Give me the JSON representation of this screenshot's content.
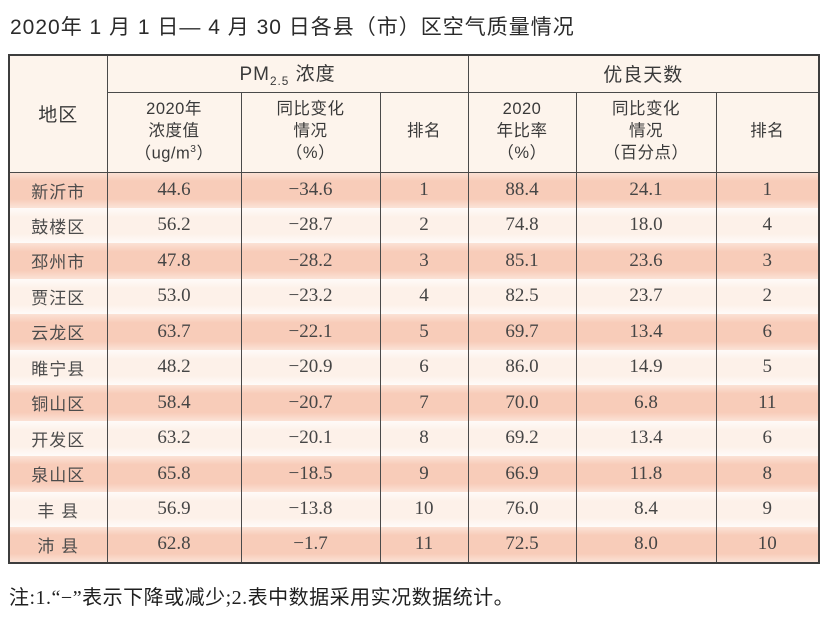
{
  "page": {
    "title": "2020年 1 月 1 日— 4 月 30 日各县（市）区空气质量情况",
    "footnote": "注:1.“−”表示下降或减少;2.表中数据采用实况数据统计。"
  },
  "colors": {
    "row_odd": "#f8ccb9",
    "row_even": "#fdf1e9",
    "header_bg": "#fdf4ec",
    "border": "#4a4a4a"
  },
  "table": {
    "region_header": "地区",
    "group_pm": {
      "prefix": "PM",
      "sub": "2.5",
      "suffix": " 浓度"
    },
    "group_good": "优良天数",
    "col_pm_value": {
      "line1": "2020年",
      "line2": "浓度值",
      "line3_pre": "（ug/m",
      "sup": "3",
      "line3_post": "）"
    },
    "col_pm_change": {
      "line1": "同比变化",
      "line2": "情况",
      "line3": "（%）"
    },
    "col_pm_rank": "排名",
    "col_ratio": {
      "line1": "2020",
      "line2": "年比率",
      "line3": "（%）"
    },
    "col_ratio_change": {
      "line1": "同比变化",
      "line2": "情况",
      "line3": "（百分点）"
    },
    "col_ratio_rank": "排名",
    "rows": [
      {
        "region": "新沂市",
        "pm": "44.6",
        "pm_change": "−34.6",
        "pm_rank": "1",
        "ratio": "88.4",
        "ratio_change": "24.1",
        "ratio_rank": "1"
      },
      {
        "region": "鼓楼区",
        "pm": "56.2",
        "pm_change": "−28.7",
        "pm_rank": "2",
        "ratio": "74.8",
        "ratio_change": "18.0",
        "ratio_rank": "4"
      },
      {
        "region": "邳州市",
        "pm": "47.8",
        "pm_change": "−28.2",
        "pm_rank": "3",
        "ratio": "85.1",
        "ratio_change": "23.6",
        "ratio_rank": "3"
      },
      {
        "region": "贾汪区",
        "pm": "53.0",
        "pm_change": "−23.2",
        "pm_rank": "4",
        "ratio": "82.5",
        "ratio_change": "23.7",
        "ratio_rank": "2"
      },
      {
        "region": "云龙区",
        "pm": "63.7",
        "pm_change": "−22.1",
        "pm_rank": "5",
        "ratio": "69.7",
        "ratio_change": "13.4",
        "ratio_rank": "6"
      },
      {
        "region": "睢宁县",
        "pm": "48.2",
        "pm_change": "−20.9",
        "pm_rank": "6",
        "ratio": "86.0",
        "ratio_change": "14.9",
        "ratio_rank": "5"
      },
      {
        "region": "铜山区",
        "pm": "58.4",
        "pm_change": "−20.7",
        "pm_rank": "7",
        "ratio": "70.0",
        "ratio_change": "6.8",
        "ratio_rank": "11"
      },
      {
        "region": "开发区",
        "pm": "63.2",
        "pm_change": "−20.1",
        "pm_rank": "8",
        "ratio": "69.2",
        "ratio_change": "13.4",
        "ratio_rank": "6"
      },
      {
        "region": "泉山区",
        "pm": "65.8",
        "pm_change": "−18.5",
        "pm_rank": "9",
        "ratio": "66.9",
        "ratio_change": "11.8",
        "ratio_rank": "8"
      },
      {
        "region": "丰 县",
        "pm": "56.9",
        "pm_change": "−13.8",
        "pm_rank": "10",
        "ratio": "76.0",
        "ratio_change": "8.4",
        "ratio_rank": "9"
      },
      {
        "region": "沛 县",
        "pm": "62.8",
        "pm_change": "−1.7",
        "pm_rank": "11",
        "ratio": "72.5",
        "ratio_change": "8.0",
        "ratio_rank": "10"
      }
    ]
  }
}
